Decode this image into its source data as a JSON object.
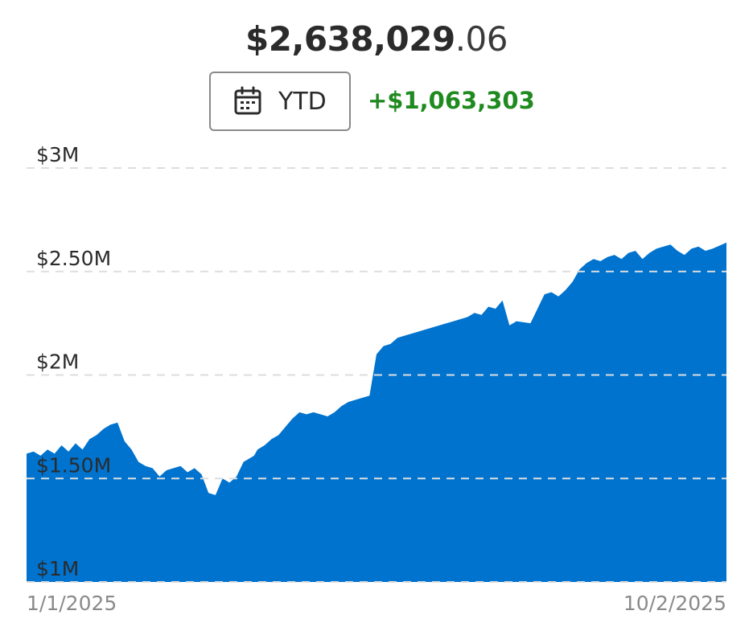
{
  "header": {
    "balance_whole": "$2,638,029",
    "balance_cents": ".06",
    "range_label": "YTD",
    "range_icon": "calendar-icon",
    "change": "+$1,063,303"
  },
  "colors": {
    "area": "#0073cf",
    "gridline": "#dedede",
    "change_positive": "#1f8a1f",
    "text": "#2b2b2b",
    "axis_text": "#8a8a8a"
  },
  "chart_data": {
    "type": "area",
    "title": "",
    "xlabel": "",
    "ylabel": "",
    "xlim": [
      0,
      1
    ],
    "ylim": [
      1000000,
      3000000
    ],
    "x_tick_labels": [
      "1/1/2025",
      "10/2/2025"
    ],
    "y_ticks": [
      1000000,
      1500000,
      2000000,
      2500000,
      3000000
    ],
    "y_tick_labels": [
      "$1M",
      "$1.50M",
      "$2M",
      "$2.50M",
      "$3M"
    ],
    "grid": true,
    "legend": "none",
    "series": [
      {
        "x": [
          0.0,
          0.01,
          0.02,
          0.03,
          0.04,
          0.05,
          0.06,
          0.07,
          0.08,
          0.09,
          0.1,
          0.11,
          0.12,
          0.13,
          0.14,
          0.15,
          0.16,
          0.17,
          0.18,
          0.19,
          0.2,
          0.21,
          0.22,
          0.23,
          0.24,
          0.25,
          0.26,
          0.27,
          0.28,
          0.29,
          0.3,
          0.31,
          0.32,
          0.325,
          0.33,
          0.34,
          0.35,
          0.36,
          0.37,
          0.38,
          0.39,
          0.4,
          0.41,
          0.42,
          0.43,
          0.44,
          0.45,
          0.46,
          0.47,
          0.48,
          0.49,
          0.5,
          0.51,
          0.52,
          0.53,
          0.6,
          0.61,
          0.62,
          0.63,
          0.64,
          0.65,
          0.66,
          0.67,
          0.68,
          0.69,
          0.7,
          0.72,
          0.74,
          0.75,
          0.76,
          0.77,
          0.78,
          0.79,
          0.8,
          0.81,
          0.82,
          0.83,
          0.84,
          0.85,
          0.86,
          0.87,
          0.88,
          0.89,
          0.9,
          0.91,
          0.92,
          0.93,
          0.94,
          0.95,
          0.96,
          0.97,
          0.98,
          0.99,
          1.0
        ],
        "values": [
          1620000,
          1630000,
          1610000,
          1640000,
          1620000,
          1660000,
          1630000,
          1670000,
          1640000,
          1690000,
          1710000,
          1740000,
          1760000,
          1770000,
          1680000,
          1640000,
          1580000,
          1560000,
          1550000,
          1510000,
          1540000,
          1550000,
          1560000,
          1530000,
          1550000,
          1520000,
          1430000,
          1420000,
          1500000,
          1480000,
          1510000,
          1580000,
          1600000,
          1610000,
          1640000,
          1660000,
          1690000,
          1710000,
          1750000,
          1790000,
          1820000,
          1810000,
          1820000,
          1810000,
          1800000,
          1820000,
          1850000,
          1870000,
          1880000,
          1890000,
          1900000,
          2100000,
          2140000,
          2150000,
          2180000,
          2250000,
          2260000,
          2270000,
          2280000,
          2300000,
          2290000,
          2330000,
          2320000,
          2360000,
          2240000,
          2260000,
          2250000,
          2390000,
          2400000,
          2380000,
          2410000,
          2450000,
          2510000,
          2540000,
          2560000,
          2550000,
          2570000,
          2580000,
          2560000,
          2590000,
          2600000,
          2560000,
          2590000,
          2610000,
          2620000,
          2630000,
          2600000,
          2580000,
          2610000,
          2620000,
          2600000,
          2610000,
          2625000,
          2640000
        ]
      }
    ]
  }
}
